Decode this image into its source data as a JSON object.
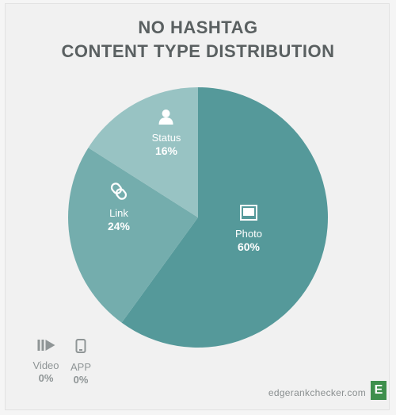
{
  "header": {
    "title_line1": "NO HASHTAG",
    "title_line2": "CONTENT TYPE DISTRIBUTION"
  },
  "colors": {
    "photo": "#55999a",
    "link": "#74adad",
    "status": "#98c3c3",
    "muted": "#8f9596"
  },
  "chart_data": {
    "type": "pie",
    "title": "NO HASHTAG CONTENT TYPE DISTRIBUTION",
    "slices": [
      {
        "label": "Photo",
        "value": 60,
        "value_label": "60%",
        "icon": "photo-icon"
      },
      {
        "label": "Link",
        "value": 24,
        "value_label": "24%",
        "icon": "link-icon"
      },
      {
        "label": "Status",
        "value": 16,
        "value_label": "16%",
        "icon": "user-icon"
      }
    ],
    "zero_items": [
      {
        "label": "Video",
        "value": 0,
        "value_label": "0%",
        "icon": "video-icon"
      },
      {
        "label": "APP",
        "value": 0,
        "value_label": "0%",
        "icon": "mobile-icon"
      }
    ]
  },
  "footer": {
    "site": "edgerankchecker.com",
    "logo_letter": "E"
  }
}
